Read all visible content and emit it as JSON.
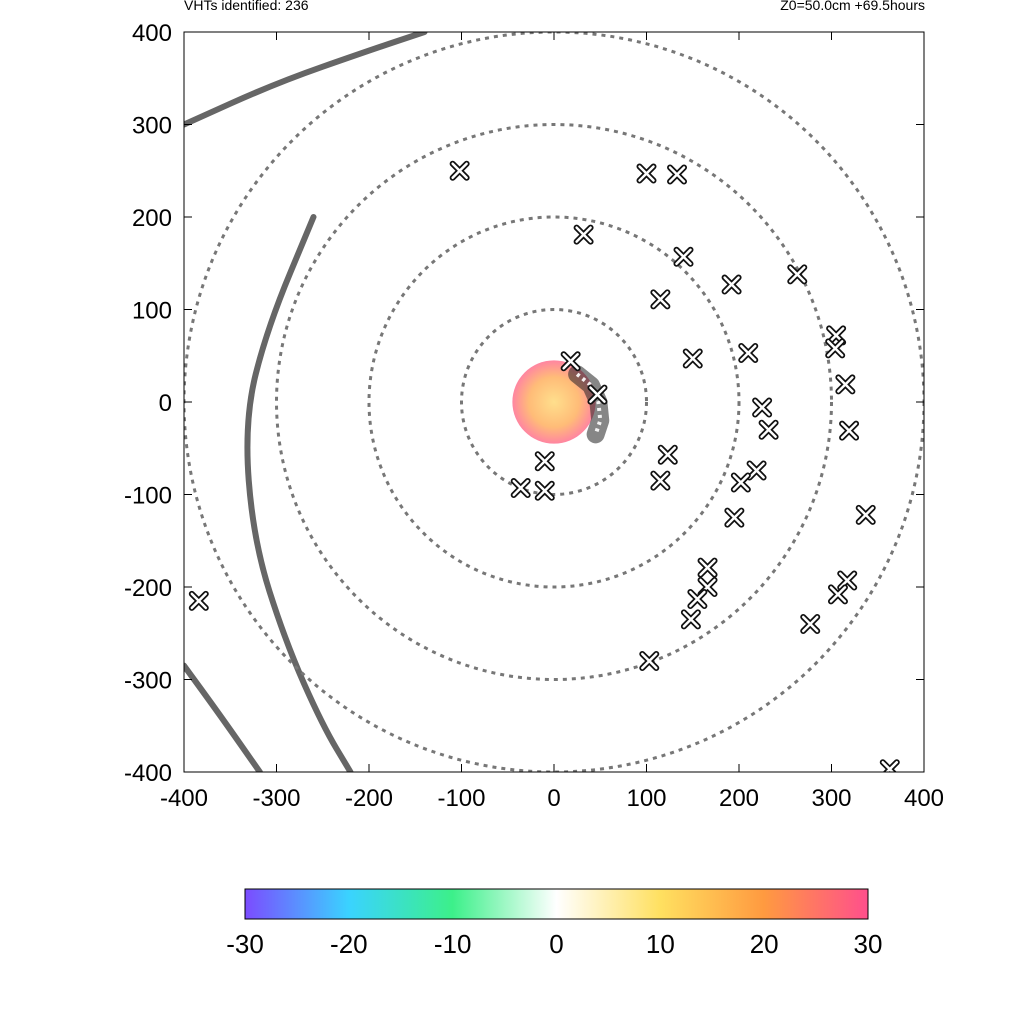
{
  "header": {
    "left_text": "VHTs identified: 236",
    "right_text": "Z0=50.0cm  +69.5hours"
  },
  "chart_data": {
    "type": "scatter",
    "title": "",
    "xlabel": "",
    "ylabel": "",
    "xlim": [
      -400,
      400
    ],
    "ylim": [
      -400,
      400
    ],
    "x_ticks": [
      -400,
      -300,
      -200,
      -100,
      0,
      100,
      200,
      300,
      400
    ],
    "y_ticks": [
      -400,
      -300,
      -200,
      -100,
      0,
      100,
      200,
      300,
      400
    ],
    "range_rings_radius": [
      100,
      200,
      300,
      400
    ],
    "colorbar": {
      "ticks": [
        -30,
        -20,
        -10,
        0,
        10,
        20,
        30
      ],
      "range": [
        -30,
        30
      ],
      "colors": [
        "#7b4cff",
        "#3ad3ff",
        "#3cf08a",
        "#ffffff",
        "#ffe060",
        "#ff9a40",
        "#ff4f8c"
      ]
    },
    "vht_markers": [
      {
        "x": -102,
        "y": 250
      },
      {
        "x": 100,
        "y": 247
      },
      {
        "x": 133,
        "y": 246
      },
      {
        "x": 32,
        "y": 181
      },
      {
        "x": 140,
        "y": 157
      },
      {
        "x": 263,
        "y": 138
      },
      {
        "x": 192,
        "y": 127
      },
      {
        "x": 115,
        "y": 111
      },
      {
        "x": 305,
        "y": 72
      },
      {
        "x": 304,
        "y": 58
      },
      {
        "x": 210,
        "y": 53
      },
      {
        "x": 150,
        "y": 47
      },
      {
        "x": 18,
        "y": 44
      },
      {
        "x": 315,
        "y": 19
      },
      {
        "x": 47,
        "y": 8
      },
      {
        "x": 225,
        "y": -6
      },
      {
        "x": 232,
        "y": -30
      },
      {
        "x": 319,
        "y": -31
      },
      {
        "x": 123,
        "y": -57
      },
      {
        "x": -10,
        "y": -64
      },
      {
        "x": 219,
        "y": -74
      },
      {
        "x": 115,
        "y": -85
      },
      {
        "x": 202,
        "y": -87
      },
      {
        "x": -36,
        "y": -93
      },
      {
        "x": -10,
        "y": -96
      },
      {
        "x": 195,
        "y": -125
      },
      {
        "x": 337,
        "y": -122
      },
      {
        "x": 166,
        "y": -179
      },
      {
        "x": 317,
        "y": -193
      },
      {
        "x": 166,
        "y": -200
      },
      {
        "x": 307,
        "y": -208
      },
      {
        "x": -384,
        "y": -215
      },
      {
        "x": 155,
        "y": -213
      },
      {
        "x": 148,
        "y": -235
      },
      {
        "x": 277,
        "y": -240
      },
      {
        "x": 103,
        "y": -280
      },
      {
        "x": 363,
        "y": -397
      }
    ],
    "core_dense_arc": [
      {
        "x": 25,
        "y": 30
      },
      {
        "x": 40,
        "y": 18
      },
      {
        "x": 48,
        "y": 0
      },
      {
        "x": 50,
        "y": -20
      },
      {
        "x": 45,
        "y": -35
      }
    ],
    "warm_core": {
      "x": 0,
      "y": 0,
      "radius": 45,
      "value": 15
    },
    "storm_tracks": [
      {
        "points": [
          [
            -400,
            300
          ],
          [
            -300,
            345
          ],
          [
            -200,
            380
          ],
          [
            -140,
            400
          ]
        ]
      },
      {
        "points": [
          [
            -260,
            200
          ],
          [
            -310,
            80
          ],
          [
            -335,
            -20
          ],
          [
            -325,
            -150
          ],
          [
            -290,
            -260
          ],
          [
            -250,
            -350
          ],
          [
            -220,
            -400
          ]
        ]
      },
      {
        "points": [
          [
            -400,
            -285
          ],
          [
            -360,
            -340
          ],
          [
            -318,
            -400
          ]
        ]
      }
    ]
  }
}
